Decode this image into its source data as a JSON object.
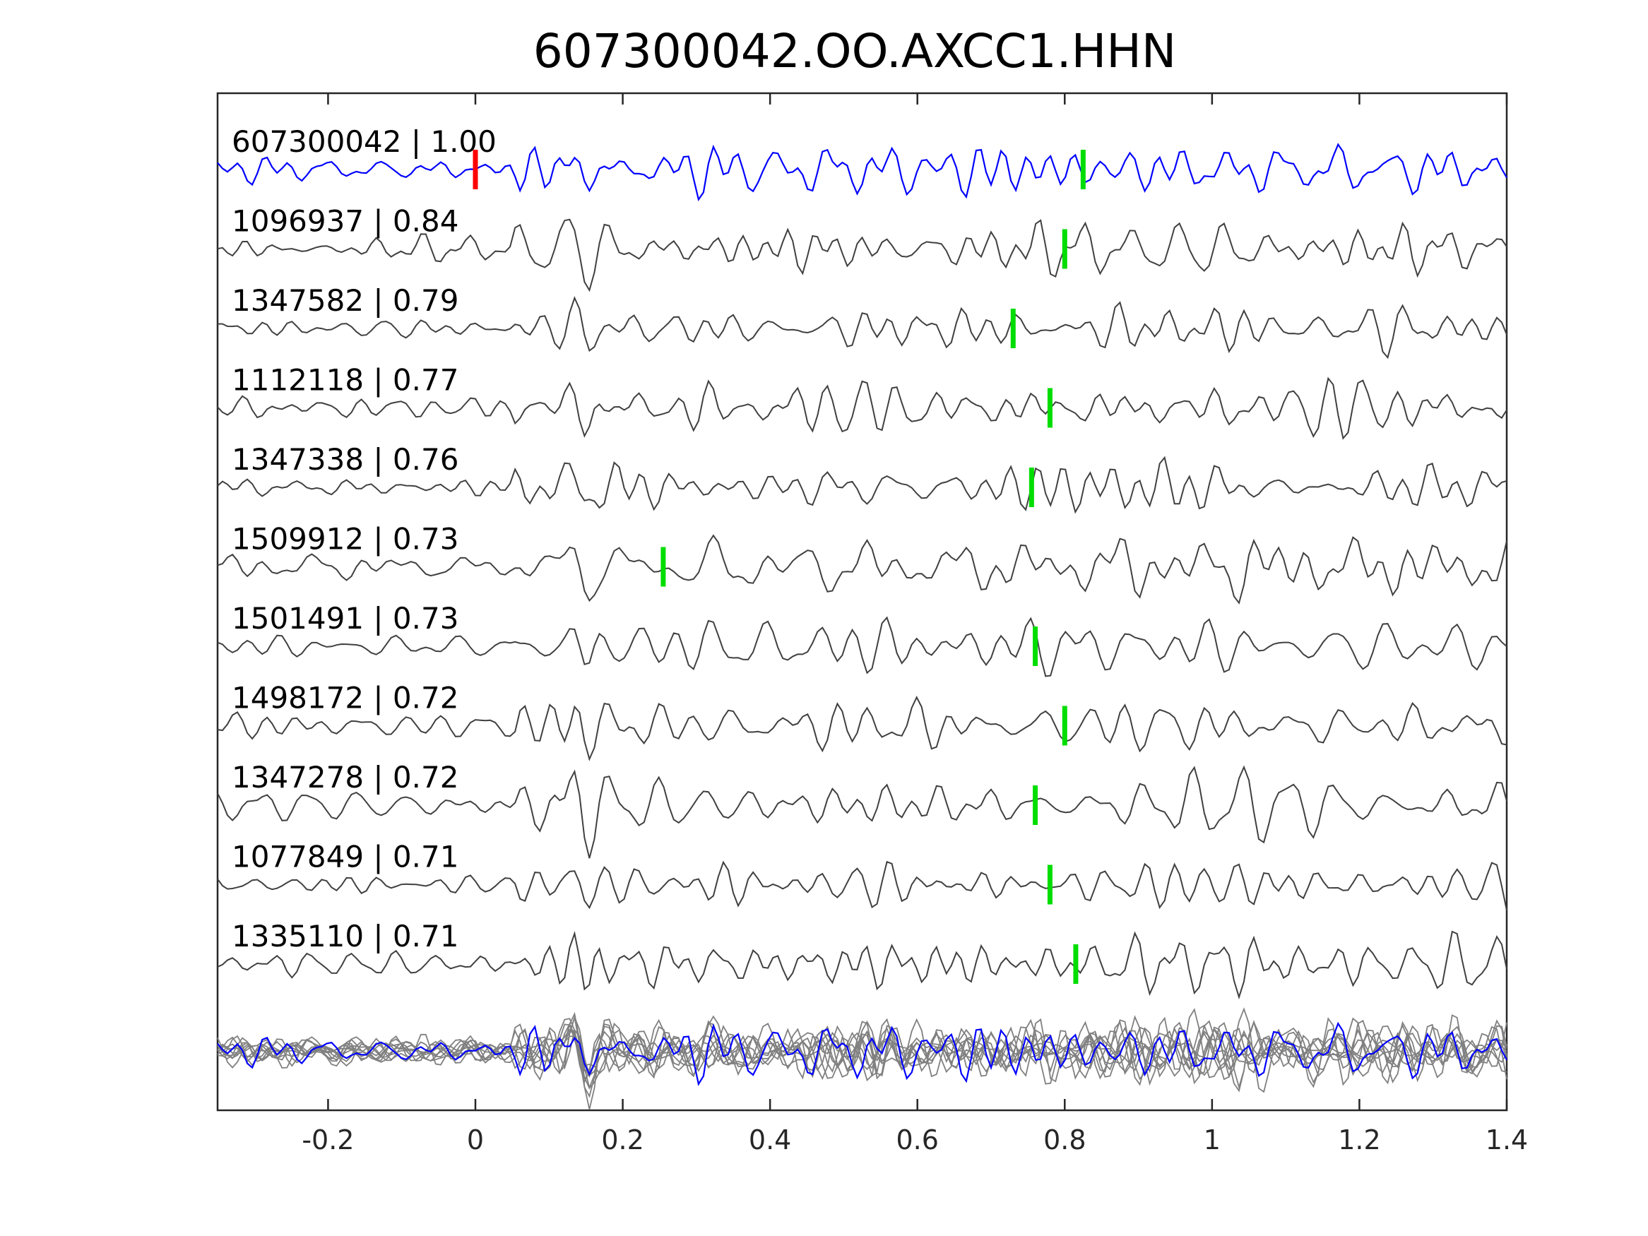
{
  "chart_data": {
    "type": "line",
    "title": "607300042.OO.AXCC1.HHN",
    "xlabel": "",
    "ylabel": "",
    "xlim": [
      -0.35,
      1.4
    ],
    "xticks": [
      "-0.2",
      "0",
      "0.2",
      "0.4",
      "0.6",
      "0.8",
      "1",
      "1.2",
      "1.4"
    ],
    "grid": false,
    "colors": {
      "reference": "#0000ff",
      "trace": "#404040",
      "stack": "#808080",
      "origin_pick": "#ff0000",
      "pick": "#00dd00"
    },
    "origin_pick_x": 0.0,
    "traces": [
      {
        "label": "607300042 | 1.00",
        "pick": 0.825,
        "reference": true
      },
      {
        "label": "1096937 | 0.84",
        "pick": 0.8
      },
      {
        "label": "1347582 | 0.79",
        "pick": 0.73
      },
      {
        "label": "1112118 | 0.77",
        "pick": 0.78
      },
      {
        "label": "1347338 | 0.76",
        "pick": 0.755
      },
      {
        "label": "1509912 | 0.73",
        "pick": 0.255
      },
      {
        "label": "1501491 | 0.73",
        "pick": 0.76
      },
      {
        "label": "1498172 | 0.72",
        "pick": 0.8
      },
      {
        "label": "1347278 | 0.72",
        "pick": 0.76
      },
      {
        "label": "1077849 | 0.71",
        "pick": 0.78
      },
      {
        "label": "1335110 | 0.71",
        "pick": 0.815
      }
    ]
  }
}
